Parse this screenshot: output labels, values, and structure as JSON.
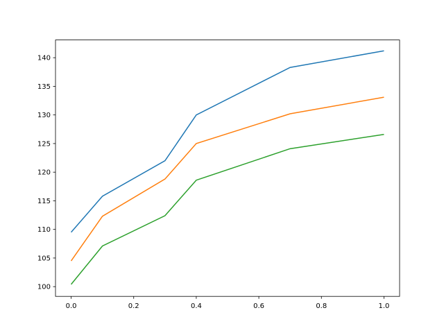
{
  "chart_data": {
    "type": "line",
    "x": [
      0,
      0.1,
      0.3,
      0.4,
      0.7,
      1.0
    ],
    "series": [
      {
        "color": "#1f77b4",
        "values": [
          109.5,
          115.8,
          122.0,
          130.0,
          138.3,
          141.2
        ]
      },
      {
        "color": "#ff7f0e",
        "values": [
          104.5,
          112.3,
          118.8,
          125.0,
          130.2,
          133.1
        ]
      },
      {
        "color": "#2ca02c",
        "values": [
          100.4,
          107.1,
          112.4,
          118.6,
          124.1,
          126.6
        ]
      }
    ],
    "xlim": [
      -0.05,
      1.05
    ],
    "ylim": [
      98.3,
      143.1
    ],
    "xticks": [
      {
        "value": 0,
        "label": "0.0"
      },
      {
        "value": 0.2,
        "label": "0.2"
      },
      {
        "value": 0.4,
        "label": "0.4"
      },
      {
        "value": 0.6,
        "label": "0.6"
      },
      {
        "value": 0.8,
        "label": "0.8"
      },
      {
        "value": 1.0,
        "label": "1.0"
      }
    ],
    "yticks": [
      100,
      105,
      110,
      115,
      120,
      125,
      130,
      135,
      140
    ],
    "grid": false
  }
}
